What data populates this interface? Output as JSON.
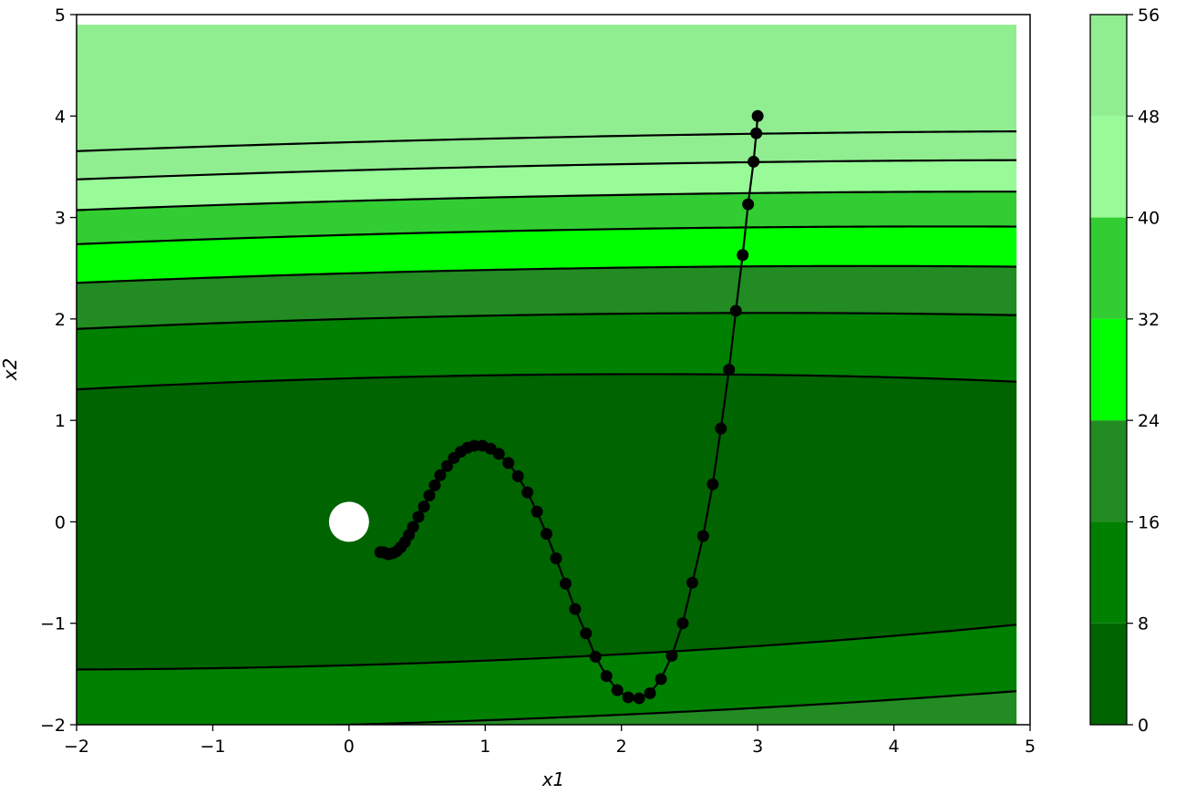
{
  "chart_data": {
    "type": "contour",
    "title": "",
    "xlabel": "x1",
    "ylabel": "x2",
    "xlim": [
      -2,
      5
    ],
    "ylim": [
      -2,
      5
    ],
    "x_ticks": [
      -2,
      -1,
      0,
      1,
      2,
      3,
      4,
      5
    ],
    "y_ticks": [
      -2,
      -1,
      0,
      1,
      2,
      3,
      4,
      5
    ],
    "x_tick_labels": [
      "−2",
      "−1",
      "0",
      "1",
      "2",
      "3",
      "4",
      "5"
    ],
    "y_tick_labels": [
      "−2",
      "−1",
      "0",
      "1",
      "2",
      "3",
      "4",
      "5"
    ],
    "grid": false,
    "contour_levels": [
      0,
      8,
      16,
      24,
      32,
      40,
      48,
      56
    ],
    "level_colors": [
      "#006400",
      "#008000",
      "#228B22",
      "#00FF00",
      "#32CD32",
      "#98FB98",
      "#90EE90"
    ],
    "colorbar": {
      "ticks": [
        0,
        8,
        16,
        24,
        32,
        40,
        48,
        56
      ],
      "tick_labels": [
        "0",
        "8",
        "16",
        "24",
        "32",
        "40",
        "48",
        "56"
      ]
    },
    "minimum_marker": {
      "x": 0,
      "y": 0,
      "color": "#ffffff"
    },
    "trajectory_color": "#000000",
    "trajectory": [
      [
        3.0,
        4.0
      ],
      [
        2.99,
        3.83
      ],
      [
        2.97,
        3.55
      ],
      [
        2.93,
        3.13
      ],
      [
        2.89,
        2.63
      ],
      [
        2.84,
        2.08
      ],
      [
        2.79,
        1.5
      ],
      [
        2.73,
        0.92
      ],
      [
        2.67,
        0.37
      ],
      [
        2.6,
        -0.14
      ],
      [
        2.52,
        -0.6
      ],
      [
        2.45,
        -1.0
      ],
      [
        2.37,
        -1.32
      ],
      [
        2.29,
        -1.55
      ],
      [
        2.21,
        -1.69
      ],
      [
        2.13,
        -1.74
      ],
      [
        2.05,
        -1.73
      ],
      [
        1.97,
        -1.66
      ],
      [
        1.89,
        -1.52
      ],
      [
        1.81,
        -1.33
      ],
      [
        1.74,
        -1.1
      ],
      [
        1.66,
        -0.86
      ],
      [
        1.59,
        -0.61
      ],
      [
        1.52,
        -0.36
      ],
      [
        1.45,
        -0.12
      ],
      [
        1.38,
        0.1
      ],
      [
        1.31,
        0.29
      ],
      [
        1.24,
        0.45
      ],
      [
        1.17,
        0.58
      ],
      [
        1.1,
        0.67
      ],
      [
        1.04,
        0.72
      ],
      [
        0.98,
        0.75
      ],
      [
        0.92,
        0.75
      ],
      [
        0.87,
        0.73
      ],
      [
        0.82,
        0.69
      ],
      [
        0.77,
        0.63
      ],
      [
        0.72,
        0.55
      ],
      [
        0.67,
        0.46
      ],
      [
        0.63,
        0.36
      ],
      [
        0.59,
        0.26
      ],
      [
        0.55,
        0.15
      ],
      [
        0.51,
        0.05
      ],
      [
        0.47,
        -0.05
      ],
      [
        0.44,
        -0.13
      ],
      [
        0.41,
        -0.2
      ],
      [
        0.38,
        -0.25
      ],
      [
        0.35,
        -0.29
      ],
      [
        0.32,
        -0.31
      ],
      [
        0.29,
        -0.32
      ],
      [
        0.27,
        -0.31
      ],
      [
        0.25,
        -0.3
      ],
      [
        0.23,
        -0.3
      ]
    ]
  }
}
